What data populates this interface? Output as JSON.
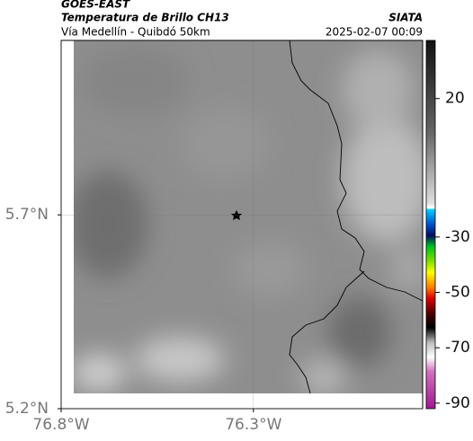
{
  "header": {
    "product": "GOES-EAST",
    "title": "Temperatura de Brillo CH13",
    "subtitle": "Vía Medellín - Quibdó 50km",
    "source": "SIATA",
    "timestamp": "2025-02-07 00:09"
  },
  "map": {
    "xlim": [
      -76.8,
      -75.86
    ],
    "ylim": [
      5.2,
      6.15
    ],
    "xticks": [
      {
        "value": -76.8,
        "label": "76.8°W"
      },
      {
        "value": -76.3,
        "label": "76.3°W"
      }
    ],
    "yticks": [
      {
        "value": 5.7,
        "label": "5.7°N"
      },
      {
        "value": 5.2,
        "label": "5.2°N"
      }
    ],
    "grid": true
  },
  "colorbar": {
    "clim": [
      -92,
      41
    ],
    "ticks": [
      20,
      -30,
      -50,
      -70,
      -90
    ]
  }
}
